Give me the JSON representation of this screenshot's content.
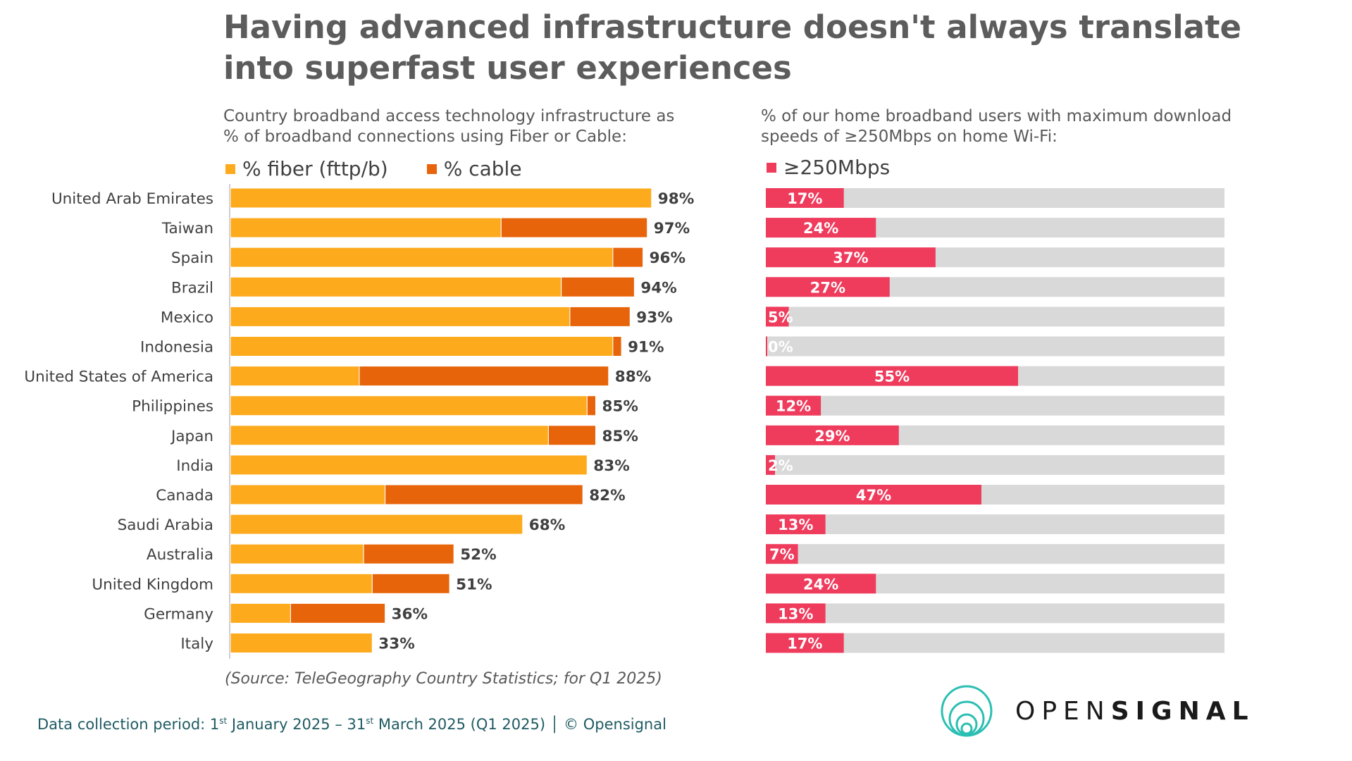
{
  "title": "Having advanced infrastructure doesn't always translate into superfast user experiences",
  "left_subtitle": "Country broadband access technology infrastructure as\n% of broadband connections using Fiber or Cable:",
  "right_subtitle": "% of our home broadband users with maximum download\nspeeds of ≥250Mbps on home Wi-Fi:",
  "source": "(Source: TeleGeography Country Statistics; for Q1 2025)",
  "footer": {
    "prefix": "Data collection period: 1",
    "sup1": "st",
    "middle": " January 2025 – 31",
    "sup2": "st",
    "suffix": " March 2025 (Q1 2025) │ © Opensignal"
  },
  "logo": {
    "part1": "OPEN",
    "part2": "SIGNAL"
  },
  "colors": {
    "fiber": "#fdaa1d",
    "cable": "#e8640a",
    "speed": "#ef3b5c",
    "track": "#d9d9d9"
  },
  "chart_data": [
    {
      "type": "bar",
      "orientation": "horizontal",
      "stacked": true,
      "categories": [
        "United Arab Emirates",
        "Taiwan",
        "Spain",
        "Brazil",
        "Mexico",
        "Indonesia",
        "United States of America",
        "Philippines",
        "Japan",
        "India",
        "Canada",
        "Saudi Arabia",
        "Australia",
        "United Kingdom",
        "Germany",
        "Italy"
      ],
      "series": [
        {
          "name": "% fiber (fttp/b)",
          "values": [
            98,
            63,
            89,
            77,
            79,
            89,
            30,
            83,
            74,
            83,
            36,
            68,
            31,
            33,
            14,
            33
          ]
        },
        {
          "name": "% cable",
          "values": [
            0,
            34,
            7,
            17,
            14,
            2,
            58,
            2,
            11,
            0,
            46,
            0,
            21,
            18,
            22,
            0
          ]
        }
      ],
      "totals": [
        "98%",
        "97%",
        "96%",
        "94%",
        "93%",
        "91%",
        "88%",
        "85%",
        "85%",
        "83%",
        "82%",
        "68%",
        "52%",
        "51%",
        "36%",
        "33%"
      ],
      "xlim": [
        0,
        100
      ],
      "legend": "top-left"
    },
    {
      "type": "bar",
      "orientation": "horizontal",
      "categories": [
        "United Arab Emirates",
        "Taiwan",
        "Spain",
        "Brazil",
        "Mexico",
        "Indonesia",
        "United States of America",
        "Philippines",
        "Japan",
        "India",
        "Canada",
        "Saudi Arabia",
        "Australia",
        "United Kingdom",
        "Germany",
        "Italy"
      ],
      "series": [
        {
          "name": "≥250Mbps",
          "values": [
            17,
            24,
            37,
            27,
            5,
            0,
            55,
            12,
            29,
            2,
            47,
            13,
            7,
            24,
            13,
            17
          ]
        }
      ],
      "labels": [
        "17%",
        "24%",
        "37%",
        "27%",
        "5%",
        "0%",
        "55%",
        "12%",
        "29%",
        "2%",
        "47%",
        "13%",
        "7%",
        "24%",
        "13%",
        "17%"
      ],
      "xlim": [
        0,
        100
      ],
      "legend": "top-left"
    }
  ]
}
